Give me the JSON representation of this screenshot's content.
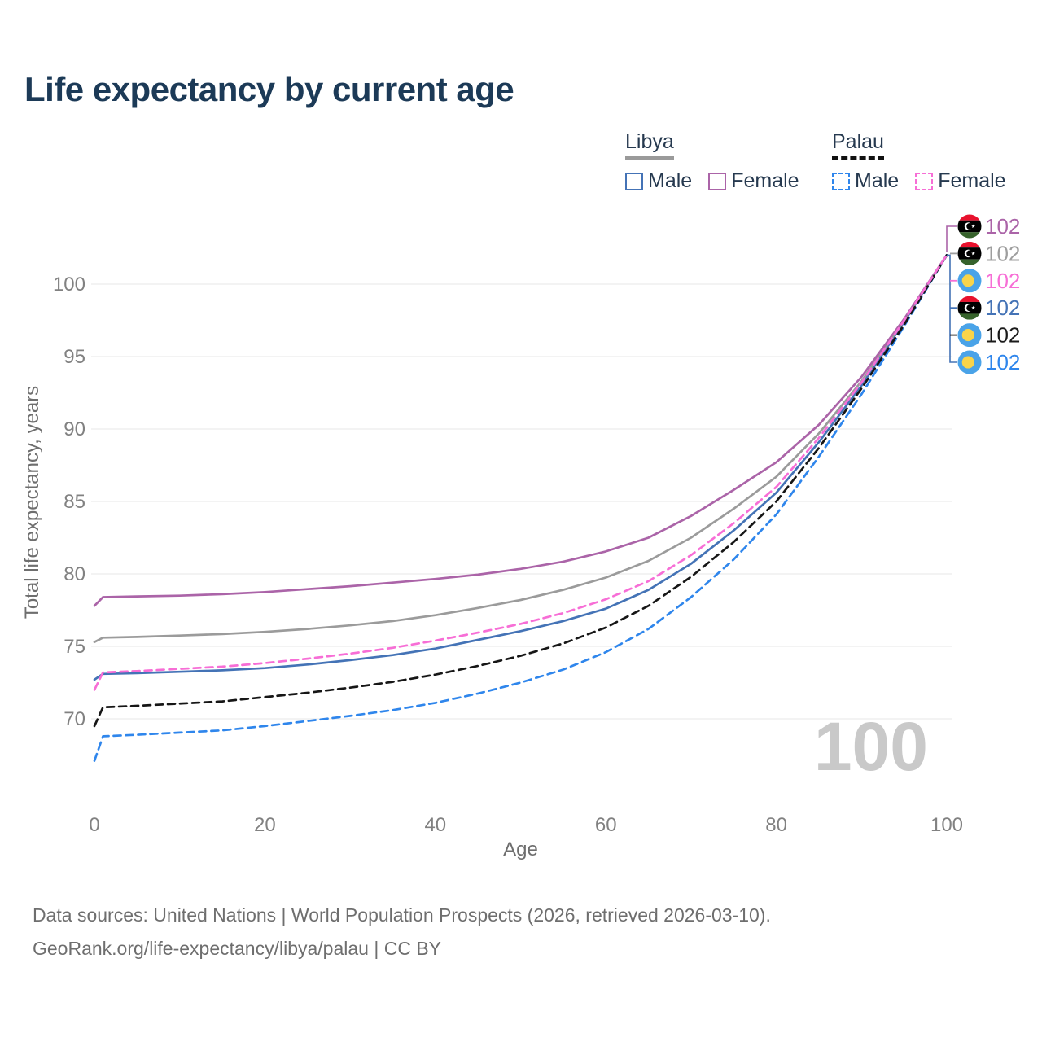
{
  "title": "Life expectancy by current age",
  "legend": {
    "groups": [
      {
        "label": "Libya",
        "underline_style": "solid",
        "underline_color": "#9a9a9a",
        "items": [
          {
            "label": "Male",
            "swatch_style": "solid",
            "swatch_color": "#4473b6"
          },
          {
            "label": "Female",
            "swatch_style": "solid",
            "swatch_color": "#ab64a8"
          }
        ]
      },
      {
        "label": "Palau",
        "underline_style": "dashed",
        "underline_color": "#111111",
        "items": [
          {
            "label": "Male",
            "swatch_style": "dashed",
            "swatch_color": "#2f86ec"
          },
          {
            "label": "Female",
            "swatch_style": "dashed",
            "swatch_color": "#f76ed6"
          }
        ]
      }
    ]
  },
  "chart_data": {
    "type": "line",
    "title": "Life expectancy by current age",
    "xlabel": "Age",
    "ylabel": "Total life expectancy, years",
    "x_ticks": [
      0,
      20,
      40,
      60,
      80,
      100
    ],
    "y_ticks": [
      70,
      75,
      80,
      85,
      90,
      95,
      100
    ],
    "xlim": [
      0,
      100
    ],
    "ylim": [
      66.5,
      103
    ],
    "grid": "horizontal",
    "legend_position": "top-right",
    "watermark": "100",
    "x": [
      0,
      1,
      5,
      10,
      15,
      20,
      25,
      30,
      35,
      40,
      45,
      50,
      55,
      60,
      65,
      70,
      75,
      80,
      85,
      90,
      95,
      100
    ],
    "series": [
      {
        "id": "libya-male",
        "name": "Libya Male",
        "country": "Libya",
        "sex": "Male",
        "style": "solid",
        "color": "#4473b6",
        "end_label": "102",
        "values": [
          72.7,
          73.1,
          73.15,
          73.25,
          73.35,
          73.5,
          73.75,
          74.05,
          74.4,
          74.85,
          75.45,
          76.05,
          76.75,
          77.6,
          78.9,
          80.7,
          83.0,
          85.6,
          89.1,
          93.0,
          97.4,
          102
        ]
      },
      {
        "id": "libya",
        "name": "Libya",
        "country": "Libya",
        "sex": "Both",
        "style": "solid",
        "color": "#9b9b9b",
        "end_label": "102",
        "values": [
          75.3,
          75.6,
          75.65,
          75.75,
          75.85,
          76.0,
          76.2,
          76.45,
          76.75,
          77.15,
          77.65,
          78.2,
          78.9,
          79.75,
          80.9,
          82.5,
          84.5,
          86.7,
          89.7,
          93.3,
          97.5,
          102
        ]
      },
      {
        "id": "libya-female",
        "name": "Libya Female",
        "country": "Libya",
        "sex": "Female",
        "style": "solid",
        "color": "#ab64a8",
        "end_label": "102",
        "values": [
          77.8,
          78.4,
          78.45,
          78.5,
          78.6,
          78.75,
          78.95,
          79.15,
          79.4,
          79.65,
          79.95,
          80.35,
          80.85,
          81.55,
          82.5,
          84.0,
          85.8,
          87.7,
          90.3,
          93.6,
          97.6,
          102
        ]
      },
      {
        "id": "palau-male",
        "name": "Palau Male",
        "country": "Palau",
        "sex": "Male",
        "style": "dashed",
        "color": "#2f86ec",
        "end_label": "102",
        "values": [
          67.1,
          68.8,
          68.9,
          69.05,
          69.2,
          69.5,
          69.85,
          70.2,
          70.6,
          71.1,
          71.75,
          72.5,
          73.4,
          74.6,
          76.2,
          78.4,
          81.0,
          84.1,
          88.1,
          92.4,
          97.1,
          102
        ]
      },
      {
        "id": "palau",
        "name": "Palau",
        "country": "Palau",
        "sex": "Both",
        "style": "dashed",
        "color": "#161616",
        "end_label": "102",
        "values": [
          69.5,
          70.8,
          70.9,
          71.05,
          71.2,
          71.5,
          71.8,
          72.15,
          72.55,
          73.05,
          73.65,
          74.35,
          75.2,
          76.3,
          77.8,
          79.8,
          82.2,
          85.0,
          88.7,
          92.8,
          97.2,
          102
        ]
      },
      {
        "id": "palau-female",
        "name": "Palau Female",
        "country": "Palau",
        "sex": "Female",
        "style": "dashed",
        "color": "#f76ed6",
        "end_label": "102",
        "values": [
          72.0,
          73.2,
          73.3,
          73.45,
          73.6,
          73.85,
          74.15,
          74.5,
          74.9,
          75.4,
          75.95,
          76.55,
          77.3,
          78.25,
          79.5,
          81.3,
          83.5,
          86.0,
          89.4,
          93.2,
          97.5,
          102
        ]
      }
    ],
    "end_label_rows": [
      {
        "series": "libya-female",
        "flag": "libya",
        "value": "102",
        "color": "#ab64a8"
      },
      {
        "series": "libya",
        "flag": "libya",
        "value": "102",
        "color": "#9e9e9e"
      },
      {
        "series": "palau-female",
        "flag": "palau",
        "value": "102",
        "color": "#f76ed6"
      },
      {
        "series": "libya-male",
        "flag": "libya",
        "value": "102",
        "color": "#4473b6"
      },
      {
        "series": "palau",
        "flag": "palau",
        "value": "102",
        "color": "#1a1a1a"
      },
      {
        "series": "palau-male",
        "flag": "palau",
        "value": "102",
        "color": "#2f86ec"
      }
    ],
    "flag_colors": {
      "libya": {
        "red": "#e8112d",
        "black": "#000000",
        "green": "#36622b",
        "emblem": "#ffffff"
      },
      "palau": {
        "blue": "#4aa3e8",
        "yellow": "#f9d44a"
      }
    },
    "style_colors": {
      "grid": "#ececec",
      "tick_text": "#818181",
      "axis_title_text": "#6e6e6e",
      "watermark": "#c9c9c9",
      "connector_bracket": "#4473b6"
    }
  },
  "footer": {
    "line1": "Data sources: United Nations | World Population Prospects (2026, retrieved 2026-03-10).",
    "line2": "GeoRank.org/life-expectancy/libya/palau | CC BY"
  }
}
